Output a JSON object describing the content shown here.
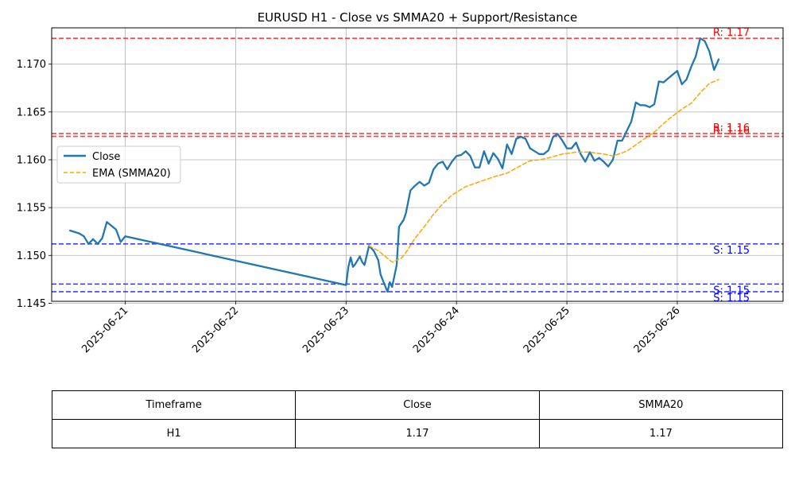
{
  "chart_data": {
    "type": "line",
    "title": "EURUSD H1 - Close vs SMMA20 + Support/Resistance",
    "xlabel": "",
    "ylabel": "",
    "x_ticks": [
      "2025-06-21",
      "2025-06-22",
      "2025-06-23",
      "2025-06-24",
      "2025-06-25",
      "2025-06-26"
    ],
    "xlim": [
      "2025-06-20T08:00",
      "2025-06-26T23:00"
    ],
    "y_ticks": [
      "1.145",
      "1.150",
      "1.155",
      "1.160",
      "1.165",
      "1.170"
    ],
    "ylim": [
      1.1452,
      1.1738
    ],
    "grid": true,
    "legend": {
      "position": "upper-left"
    },
    "series": [
      {
        "name": "Close",
        "color": "#1f77b4",
        "style": "solid",
        "points": [
          [
            "2025-06-20T12:00",
            1.1526
          ],
          [
            "2025-06-20T14:00",
            1.1523
          ],
          [
            "2025-06-20T15:00",
            1.152
          ],
          [
            "2025-06-20T16:00",
            1.1512
          ],
          [
            "2025-06-20T17:00",
            1.1517
          ],
          [
            "2025-06-20T18:00",
            1.1512
          ],
          [
            "2025-06-20T19:00",
            1.1518
          ],
          [
            "2025-06-20T20:00",
            1.1535
          ],
          [
            "2025-06-20T22:00",
            1.1527
          ],
          [
            "2025-06-20T23:00",
            1.1514
          ],
          [
            "2025-06-21T00:00",
            1.152
          ],
          [
            "2025-06-23T00:00",
            1.1469
          ],
          [
            "2025-06-23T00:30",
            1.1488
          ],
          [
            "2025-06-23T01:00",
            1.1498
          ],
          [
            "2025-06-23T01:30",
            1.1488
          ],
          [
            "2025-06-23T02:00",
            1.1491
          ],
          [
            "2025-06-23T03:00",
            1.1499
          ],
          [
            "2025-06-23T03:30",
            1.1493
          ],
          [
            "2025-06-23T04:00",
            1.149
          ],
          [
            "2025-06-23T05:00",
            1.151
          ],
          [
            "2025-06-23T06:00",
            1.1505
          ],
          [
            "2025-06-23T07:00",
            1.1495
          ],
          [
            "2025-06-23T07:30",
            1.148
          ],
          [
            "2025-06-23T09:00",
            1.1462
          ],
          [
            "2025-06-23T09:30",
            1.1472
          ],
          [
            "2025-06-23T10:00",
            1.1467
          ],
          [
            "2025-06-23T11:00",
            1.149
          ],
          [
            "2025-06-23T11:30",
            1.153
          ],
          [
            "2025-06-23T12:30",
            1.1537
          ],
          [
            "2025-06-23T13:00",
            1.1544
          ],
          [
            "2025-06-23T14:00",
            1.1568
          ],
          [
            "2025-06-23T15:00",
            1.1573
          ],
          [
            "2025-06-23T16:00",
            1.1577
          ],
          [
            "2025-06-23T17:00",
            1.1573
          ],
          [
            "2025-06-23T18:00",
            1.1576
          ],
          [
            "2025-06-23T19:00",
            1.159
          ],
          [
            "2025-06-23T20:00",
            1.1596
          ],
          [
            "2025-06-23T21:00",
            1.1598
          ],
          [
            "2025-06-23T22:00",
            1.159
          ],
          [
            "2025-06-23T23:00",
            1.1598
          ],
          [
            "2025-06-24T00:00",
            1.1604
          ],
          [
            "2025-06-24T01:00",
            1.1605
          ],
          [
            "2025-06-24T02:00",
            1.1609
          ],
          [
            "2025-06-24T03:00",
            1.1604
          ],
          [
            "2025-06-24T04:00",
            1.1592
          ],
          [
            "2025-06-24T05:00",
            1.1592
          ],
          [
            "2025-06-24T06:00",
            1.1609
          ],
          [
            "2025-06-24T07:00",
            1.1596
          ],
          [
            "2025-06-24T08:00",
            1.1607
          ],
          [
            "2025-06-24T09:00",
            1.1601
          ],
          [
            "2025-06-24T10:00",
            1.1591
          ],
          [
            "2025-06-24T11:00",
            1.1616
          ],
          [
            "2025-06-24T12:00",
            1.1606
          ],
          [
            "2025-06-24T13:00",
            1.1622
          ],
          [
            "2025-06-24T14:00",
            1.1624
          ],
          [
            "2025-06-24T15:00",
            1.1622
          ],
          [
            "2025-06-24T16:00",
            1.1612
          ],
          [
            "2025-06-24T17:00",
            1.1609
          ],
          [
            "2025-06-24T18:00",
            1.1606
          ],
          [
            "2025-06-24T19:00",
            1.1606
          ],
          [
            "2025-06-24T20:00",
            1.161
          ],
          [
            "2025-06-24T21:00",
            1.1624
          ],
          [
            "2025-06-24T22:00",
            1.1627
          ],
          [
            "2025-06-24T23:00",
            1.162
          ],
          [
            "2025-06-25T00:00",
            1.1612
          ],
          [
            "2025-06-25T01:00",
            1.1612
          ],
          [
            "2025-06-25T02:00",
            1.1618
          ],
          [
            "2025-06-25T03:00",
            1.1606
          ],
          [
            "2025-06-25T04:00",
            1.1598
          ],
          [
            "2025-06-25T05:00",
            1.1608
          ],
          [
            "2025-06-25T06:00",
            1.1599
          ],
          [
            "2025-06-25T07:00",
            1.1602
          ],
          [
            "2025-06-25T08:00",
            1.1598
          ],
          [
            "2025-06-25T09:00",
            1.1593
          ],
          [
            "2025-06-25T10:00",
            1.16
          ],
          [
            "2025-06-25T11:00",
            1.162
          ],
          [
            "2025-06-25T12:00",
            1.162
          ],
          [
            "2025-06-25T13:00",
            1.163
          ],
          [
            "2025-06-25T14:00",
            1.164
          ],
          [
            "2025-06-25T15:00",
            1.166
          ],
          [
            "2025-06-25T16:00",
            1.1657
          ],
          [
            "2025-06-25T17:00",
            1.1657
          ],
          [
            "2025-06-25T18:00",
            1.1655
          ],
          [
            "2025-06-25T19:00",
            1.1658
          ],
          [
            "2025-06-25T20:00",
            1.1682
          ],
          [
            "2025-06-25T21:00",
            1.1681
          ],
          [
            "2025-06-25T22:00",
            1.1685
          ],
          [
            "2025-06-25T23:00",
            1.1689
          ],
          [
            "2025-06-26T00:00",
            1.1693
          ],
          [
            "2025-06-26T01:00",
            1.1679
          ],
          [
            "2025-06-26T02:00",
            1.1684
          ],
          [
            "2025-06-26T03:00",
            1.1697
          ],
          [
            "2025-06-26T04:00",
            1.1708
          ],
          [
            "2025-06-26T05:00",
            1.1727
          ],
          [
            "2025-06-26T06:00",
            1.1724
          ],
          [
            "2025-06-26T07:00",
            1.1713
          ],
          [
            "2025-06-26T08:00",
            1.1694
          ],
          [
            "2025-06-26T09:00",
            1.1705
          ]
        ]
      },
      {
        "name": "EMA (SMMA20)",
        "color": "#ffa500",
        "style": "dashed",
        "points": [
          [
            "2025-06-23T05:00",
            1.151
          ],
          [
            "2025-06-23T07:00",
            1.1505
          ],
          [
            "2025-06-23T09:00",
            1.1497
          ],
          [
            "2025-06-23T10:00",
            1.1493
          ],
          [
            "2025-06-23T12:00",
            1.1497
          ],
          [
            "2025-06-23T13:00",
            1.1503
          ],
          [
            "2025-06-23T15:00",
            1.1518
          ],
          [
            "2025-06-23T17:00",
            1.153
          ],
          [
            "2025-06-23T19:00",
            1.1543
          ],
          [
            "2025-06-23T21:00",
            1.1554
          ],
          [
            "2025-06-23T23:00",
            1.1563
          ],
          [
            "2025-06-24T02:00",
            1.1572
          ],
          [
            "2025-06-24T05:00",
            1.1577
          ],
          [
            "2025-06-24T08:00",
            1.1582
          ],
          [
            "2025-06-24T11:00",
            1.1586
          ],
          [
            "2025-06-24T14:00",
            1.1594
          ],
          [
            "2025-06-24T16:00",
            1.1599
          ],
          [
            "2025-06-24T18:00",
            1.16
          ],
          [
            "2025-06-24T20:00",
            1.1602
          ],
          [
            "2025-06-24T23:00",
            1.1606
          ],
          [
            "2025-06-25T02:00",
            1.1608
          ],
          [
            "2025-06-25T05:00",
            1.1608
          ],
          [
            "2025-06-25T08:00",
            1.1606
          ],
          [
            "2025-06-25T10:00",
            1.1604
          ],
          [
            "2025-06-25T13:00",
            1.1609
          ],
          [
            "2025-06-25T16:00",
            1.1619
          ],
          [
            "2025-06-25T19:00",
            1.1629
          ],
          [
            "2025-06-25T22:00",
            1.1642
          ],
          [
            "2025-06-26T01:00",
            1.1653
          ],
          [
            "2025-06-26T03:00",
            1.1659
          ],
          [
            "2025-06-26T05:00",
            1.167
          ],
          [
            "2025-06-26T07:00",
            1.168
          ],
          [
            "2025-06-26T09:00",
            1.1684
          ]
        ]
      }
    ],
    "resistance_levels": [
      {
        "value": 1.1727,
        "label": "R: 1.17"
      },
      {
        "value": 1.16275,
        "label": "R: 1.16"
      },
      {
        "value": 1.16245,
        "label": "R: 1.16"
      }
    ],
    "support_levels": [
      {
        "value": 1.1512,
        "label": "S: 1.15"
      },
      {
        "value": 1.147,
        "label": "S: 1.15"
      },
      {
        "value": 1.1462,
        "label": "S: 1.15"
      }
    ],
    "colors": {
      "close": "#1f77b4",
      "smma": "#ffa500",
      "resistance": "#ff0000",
      "support": "#0000ff",
      "grid": "#b0b0b0"
    }
  },
  "table": {
    "headers": [
      "Timeframe",
      "Close",
      "SMMA20"
    ],
    "rows": [
      [
        "H1",
        "1.17",
        "1.17"
      ]
    ]
  }
}
